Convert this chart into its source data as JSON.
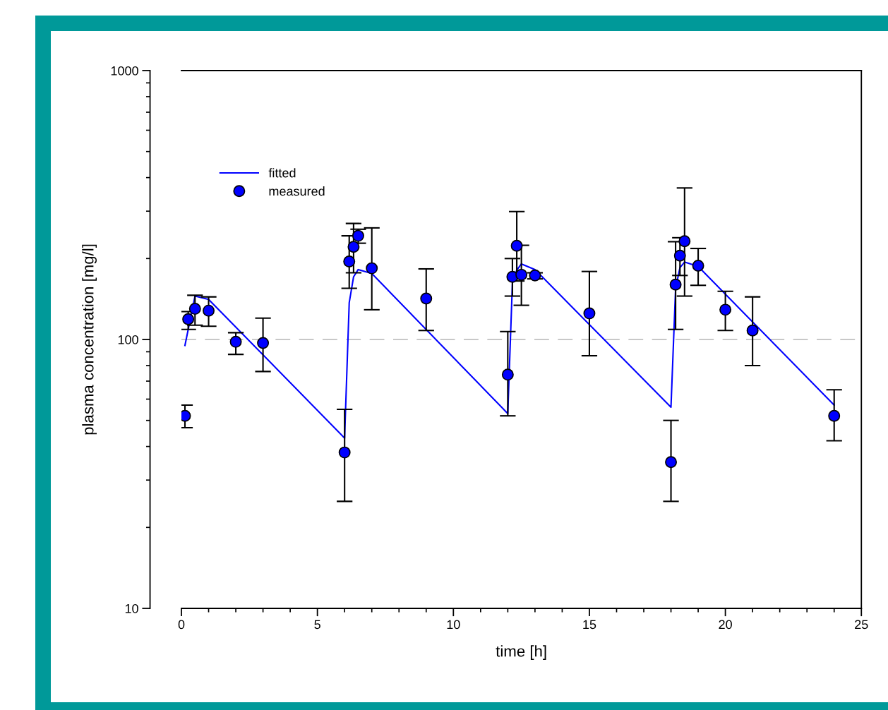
{
  "chart_data": {
    "type": "scatter",
    "xlabel": "time [h]",
    "ylabel": "plasma concentration [mg/l]",
    "log": "y",
    "xlim": [
      0,
      25
    ],
    "ylim": [
      10,
      1000
    ],
    "xticks": [
      0,
      5,
      10,
      15,
      20,
      25
    ],
    "yticks": [
      10,
      100,
      1000
    ],
    "grid": false,
    "legend": "top left",
    "ref_lines": [
      {
        "axis": "y",
        "value": 100,
        "label": null,
        "color": "#c8c8c8",
        "line_style": "dashed"
      }
    ],
    "series": [
      {
        "name": "fitted",
        "type": "line",
        "color": "#0000ff",
        "marker": "none",
        "line_style": "solid",
        "x": [
          0.13,
          0.5,
          1,
          6,
          6.17,
          6.33,
          6.5,
          7,
          12,
          12.17,
          12.33,
          12.5,
          13,
          18,
          18.17,
          18.33,
          18.5,
          19,
          24
        ],
        "values": [
          95,
          145,
          141,
          43,
          137,
          171,
          182,
          176,
          53,
          162,
          181,
          191,
          182,
          56,
          155,
          185,
          194,
          187,
          57
        ]
      },
      {
        "name": "measured",
        "color": "#0000ff",
        "marker": "circle",
        "x": [
          0.13,
          0.25,
          0.5,
          1,
          2,
          3,
          6,
          6.17,
          6.33,
          6.5,
          7,
          9,
          12,
          12.17,
          12.33,
          12.5,
          13,
          15,
          18,
          18.17,
          18.33,
          18.5,
          19,
          20,
          21,
          24
        ],
        "values": [
          52,
          119,
          130,
          128,
          98,
          97,
          38,
          195,
          221,
          243,
          184,
          142,
          74,
          171,
          223,
          174,
          173,
          125,
          35,
          160,
          205,
          232,
          188,
          129,
          108,
          52
        ],
        "errors": [
          [
            47,
            57
          ],
          [
            109,
            127
          ],
          [
            113,
            146
          ],
          [
            112,
            144
          ],
          [
            88,
            106
          ],
          [
            76,
            120
          ],
          [
            25,
            55
          ],
          [
            155,
            243
          ],
          [
            177,
            270
          ],
          [
            228,
            257
          ],
          [
            129,
            260
          ],
          [
            108,
            183
          ],
          [
            52,
            107
          ],
          [
            145,
            200
          ],
          [
            165,
            299
          ],
          [
            134,
            224
          ],
          [
            168,
            177
          ],
          [
            87,
            179
          ],
          [
            25,
            50
          ],
          [
            109,
            231
          ],
          [
            173,
            239
          ],
          [
            145,
            366
          ],
          [
            159,
            218
          ],
          [
            108,
            151
          ],
          [
            80,
            144
          ],
          [
            42,
            65
          ]
        ]
      }
    ]
  }
}
